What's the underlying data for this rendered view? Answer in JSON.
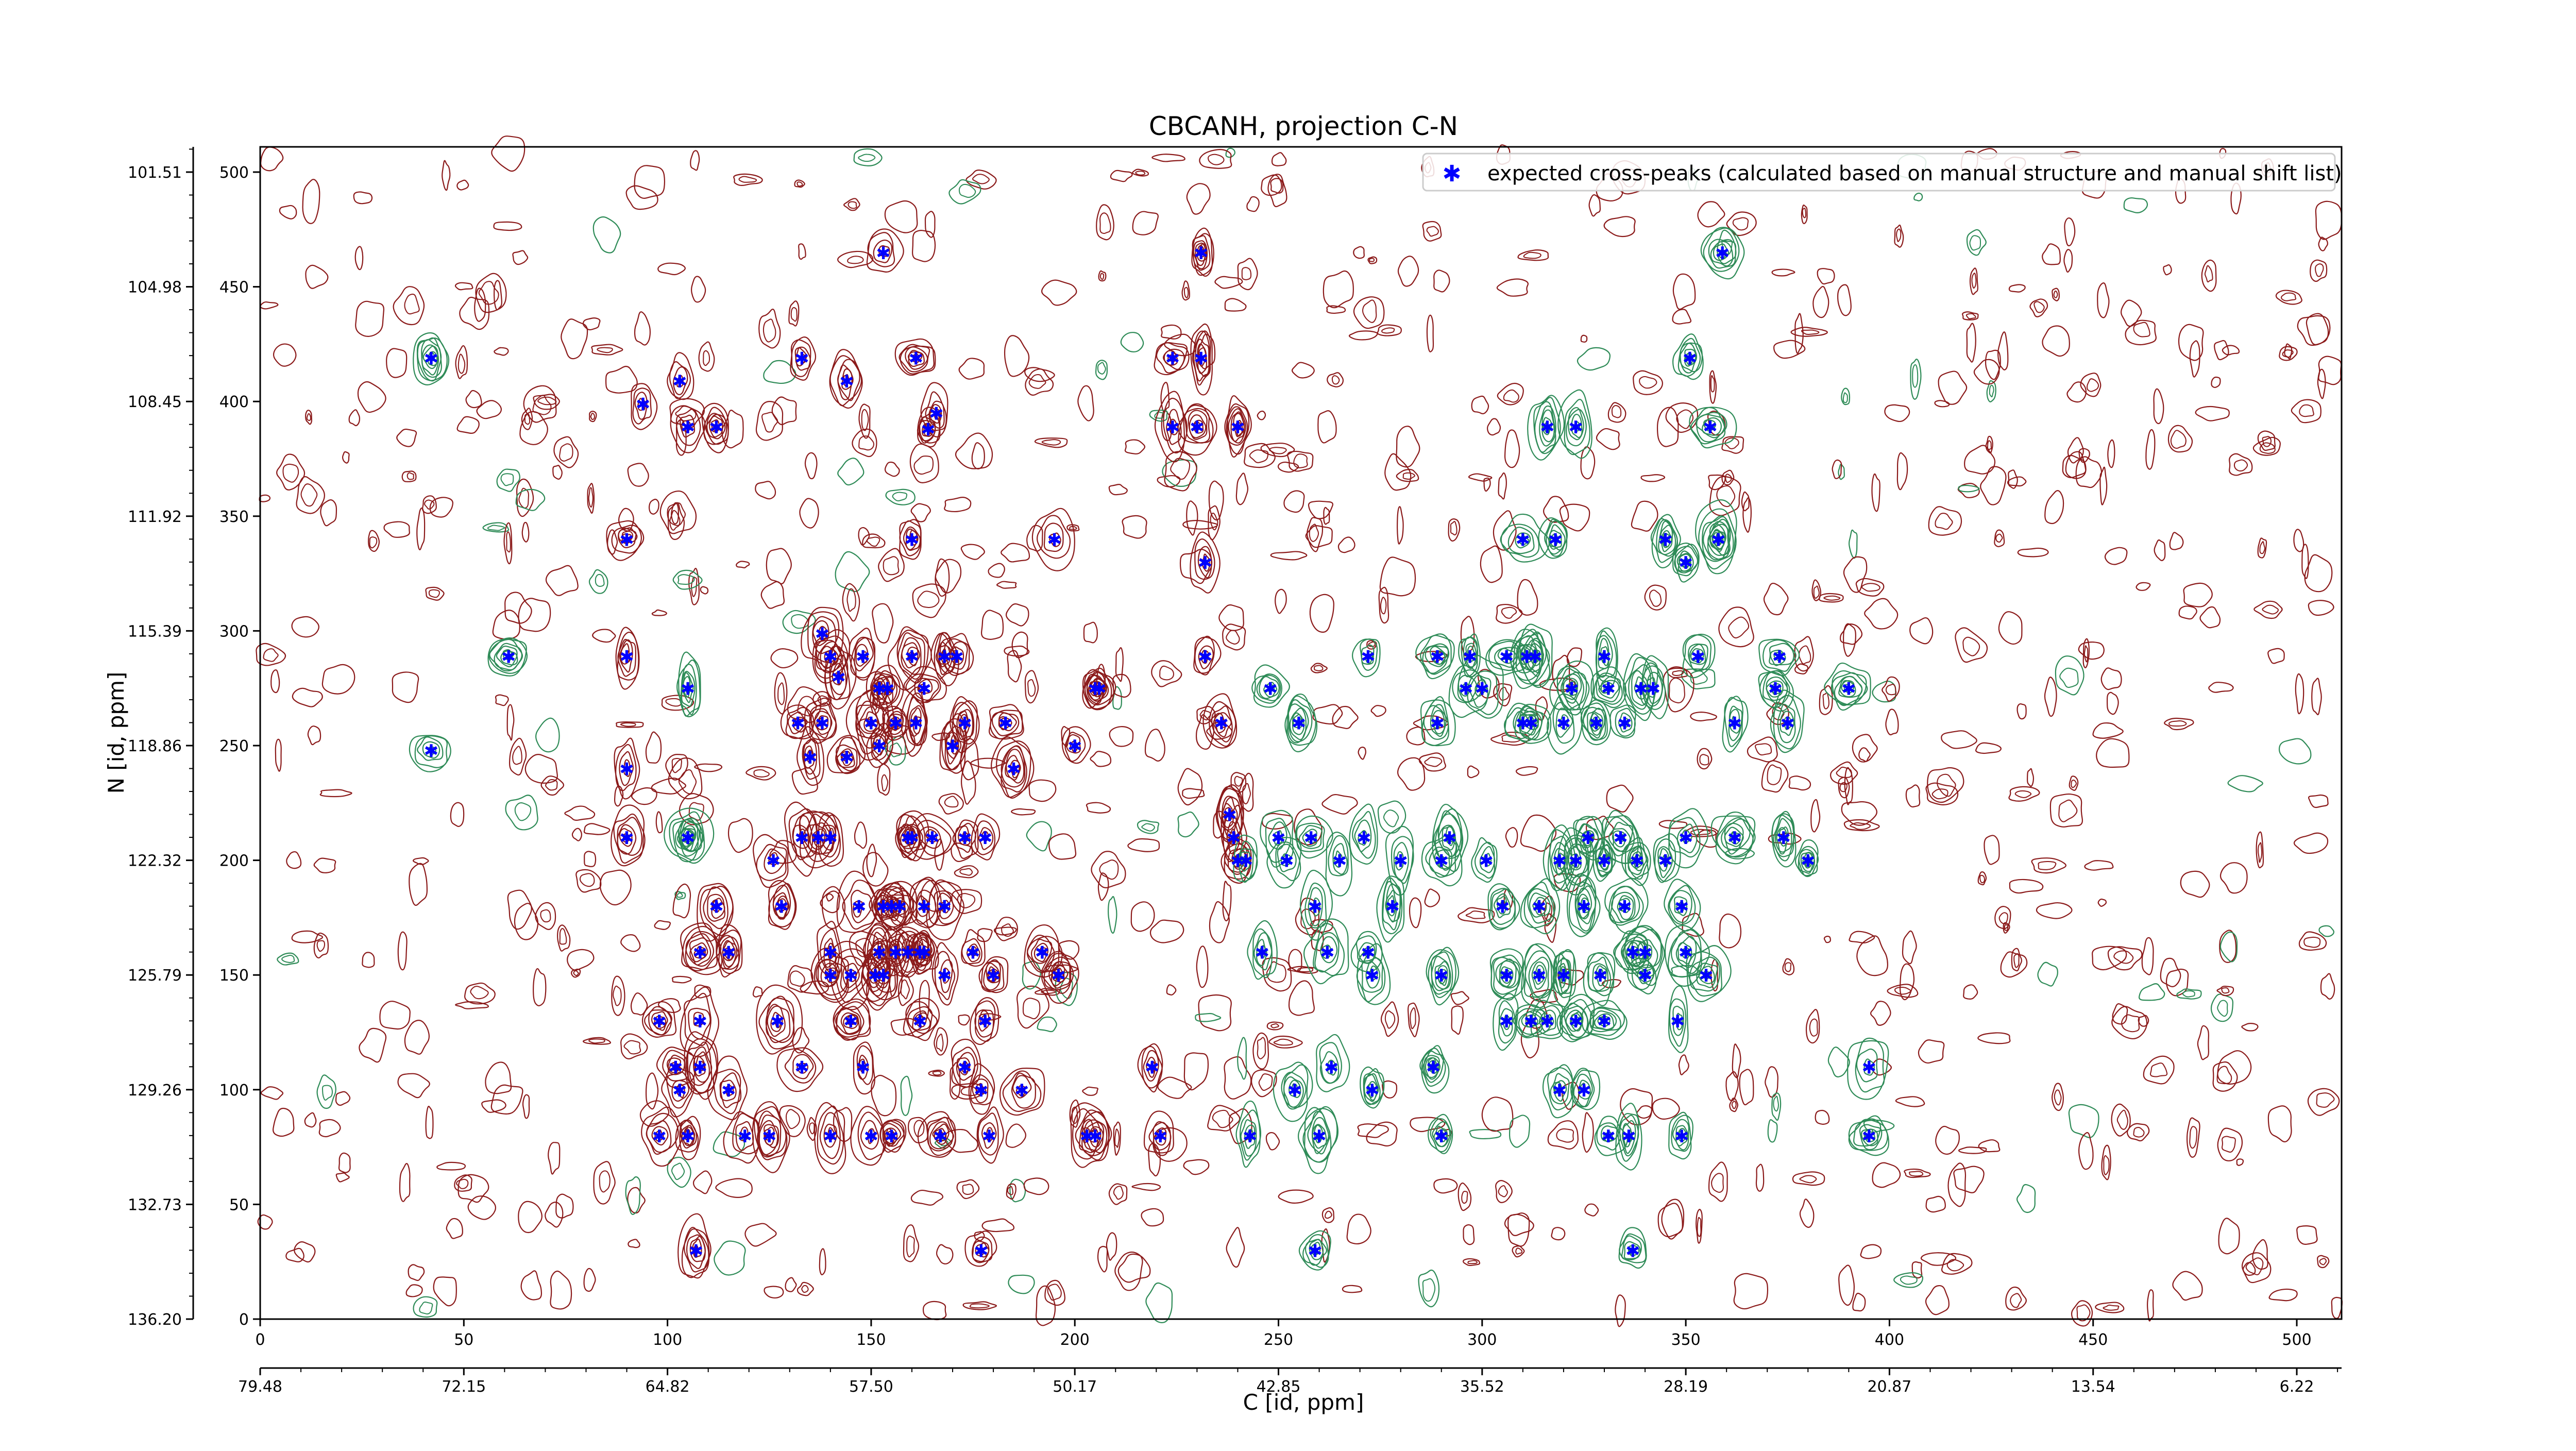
{
  "chart_data": {
    "type": "scatter",
    "title": "CBCANH, projection C-N",
    "xlabel": "C [id, ppm]",
    "ylabel": "N [id, ppm]",
    "xlim": [
      0,
      511
    ],
    "ylim": [
      0,
      511
    ],
    "x_index_ticks": [
      "0",
      "50",
      "100",
      "150",
      "200",
      "250",
      "300",
      "350",
      "400",
      "450",
      "500"
    ],
    "x_ppm_ticks": [
      "79.48",
      "72.15",
      "64.82",
      "57.50",
      "50.17",
      "42.85",
      "35.52",
      "28.19",
      "20.87",
      "13.54",
      "6.22"
    ],
    "y_index_ticks": [
      "0",
      "50",
      "100",
      "150",
      "200",
      "250",
      "300",
      "350",
      "400",
      "450",
      "500"
    ],
    "y_ppm_ticks": [
      "136.20",
      "132.73",
      "129.26",
      "125.79",
      "122.32",
      "118.86",
      "115.39",
      "111.92",
      "108.45",
      "104.98",
      "101.51"
    ],
    "grid": false,
    "legend_position": "top-right",
    "series": [
      {
        "name": "expected cross-peaks (calculated based on manual structure and manual shift list)",
        "color": "#0000ff",
        "marker": "*",
        "x": [
          153,
          231,
          359,
          42,
          103,
          133,
          144,
          161,
          224,
          231,
          351,
          94,
          112,
          105,
          166,
          164,
          224,
          230,
          240,
          356,
          323,
          316,
          90,
          160,
          195,
          232,
          358,
          345,
          350,
          358,
          310,
          318,
          61,
          90,
          140,
          138,
          148,
          160,
          168,
          171,
          232,
          272,
          297,
          289,
          306,
          311,
          313,
          330,
          353,
          373,
          105,
          142,
          152,
          154,
          163,
          205,
          206,
          248,
          296,
          300,
          322,
          331,
          339,
          342,
          372,
          390,
          132,
          138,
          150,
          156,
          161,
          173,
          183,
          42,
          90,
          135,
          144,
          185,
          152,
          170,
          200,
          236,
          255,
          289,
          310,
          312,
          320,
          328,
          335,
          362,
          375,
          105,
          137,
          159,
          165,
          173,
          178,
          271,
          238,
          239,
          250,
          258,
          292,
          326,
          334,
          350,
          362,
          374,
          90,
          105,
          133,
          140,
          160,
          126,
          240,
          242,
          252,
          265,
          280,
          290,
          301,
          319,
          323,
          330,
          338,
          345,
          380,
          112,
          128,
          147,
          153,
          155,
          157,
          163,
          168,
          259,
          278,
          305,
          314,
          325,
          335,
          349,
          108,
          115,
          140,
          152,
          156,
          159,
          162,
          163,
          175,
          192,
          246,
          262,
          272,
          337,
          350,
          340,
          140,
          145,
          151,
          153,
          168,
          180,
          196,
          273,
          290,
          306,
          314,
          320,
          329,
          340,
          355,
          98,
          108,
          127,
          145,
          162,
          178,
          306,
          316,
          312,
          323,
          330,
          348,
          102,
          108,
          133,
          148,
          173,
          219,
          263,
          288,
          395,
          103,
          115,
          177,
          187,
          254,
          273,
          319,
          325,
          105,
          119,
          140,
          155,
          167,
          179,
          203,
          221,
          243,
          98,
          125,
          150,
          205,
          260,
          290,
          331,
          336,
          349,
          395,
          107,
          177,
          259,
          337
        ],
        "y": [
          465,
          465,
          465,
          419,
          409,
          419,
          409,
          419,
          419,
          419,
          419,
          399,
          389,
          389,
          395,
          388,
          389,
          389,
          389,
          389,
          389,
          389,
          340,
          340,
          340,
          330,
          340,
          340,
          330,
          340,
          340,
          340,
          289,
          289,
          289,
          299,
          289,
          289,
          289,
          289,
          289,
          289,
          289,
          289,
          289,
          289,
          289,
          289,
          289,
          289,
          275,
          280,
          275,
          275,
          275,
          275,
          275,
          275,
          275,
          275,
          275,
          275,
          275,
          275,
          275,
          275,
          260,
          260,
          260,
          260,
          260,
          260,
          260,
          248,
          240,
          245,
          245,
          240,
          250,
          250,
          250,
          260,
          260,
          260,
          260,
          260,
          260,
          260,
          260,
          260,
          260,
          210,
          210,
          210,
          210,
          210,
          210,
          210,
          220,
          210,
          210,
          210,
          210,
          210,
          210,
          210,
          210,
          210,
          210,
          210,
          210,
          210,
          210,
          200,
          200,
          200,
          200,
          200,
          200,
          200,
          200,
          200,
          200,
          200,
          200,
          200,
          200,
          180,
          180,
          180,
          180,
          180,
          180,
          180,
          180,
          180,
          180,
          180,
          180,
          180,
          180,
          180,
          160,
          160,
          160,
          160,
          160,
          160,
          160,
          160,
          160,
          160,
          160,
          160,
          160,
          160,
          160,
          160,
          150,
          150,
          150,
          150,
          150,
          150,
          150,
          150,
          150,
          150,
          150,
          150,
          150,
          150,
          150,
          130,
          130,
          130,
          130,
          130,
          130,
          130,
          130,
          130,
          130,
          130,
          130,
          110,
          110,
          110,
          110,
          110,
          110,
          110,
          110,
          110,
          100,
          100,
          100,
          100,
          100,
          100,
          100,
          100,
          80,
          80,
          80,
          80,
          80,
          80,
          80,
          80,
          80,
          80,
          80,
          80,
          80,
          80,
          80,
          80,
          80,
          80,
          80,
          30,
          30,
          30,
          30
        ]
      }
    ],
    "contours": {
      "positive_color": "#8b1a1a",
      "negative_color": "#2e8b57"
    }
  }
}
